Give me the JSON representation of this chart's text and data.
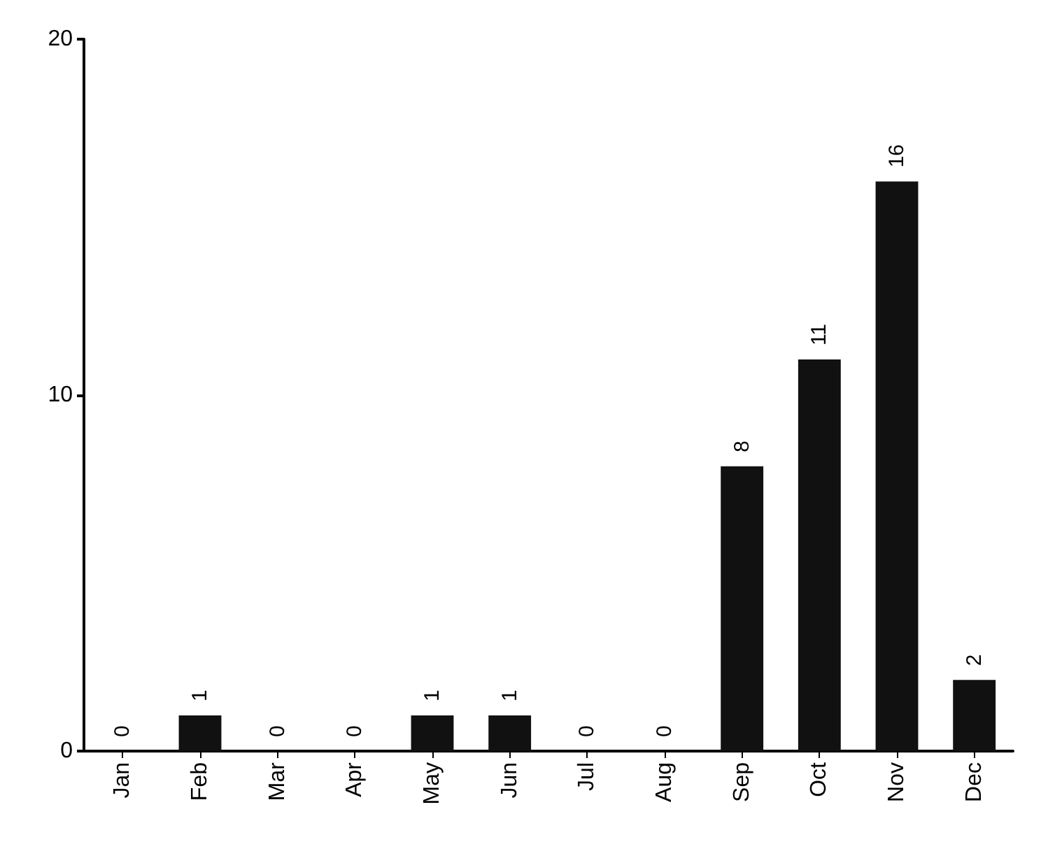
{
  "chart_data": {
    "type": "bar",
    "categories": [
      "Jan",
      "Feb",
      "Mar",
      "Apr",
      "May",
      "Jun",
      "Jul",
      "Aug",
      "Sep",
      "Oct",
      "Nov",
      "Dec"
    ],
    "values": [
      0,
      1,
      0,
      0,
      1,
      1,
      0,
      0,
      8,
      11,
      16,
      2
    ],
    "color": "#111111",
    "ylim": [
      0,
      20
    ],
    "yticks": [
      0,
      10,
      20
    ],
    "grid": false,
    "data_labels": true
  }
}
